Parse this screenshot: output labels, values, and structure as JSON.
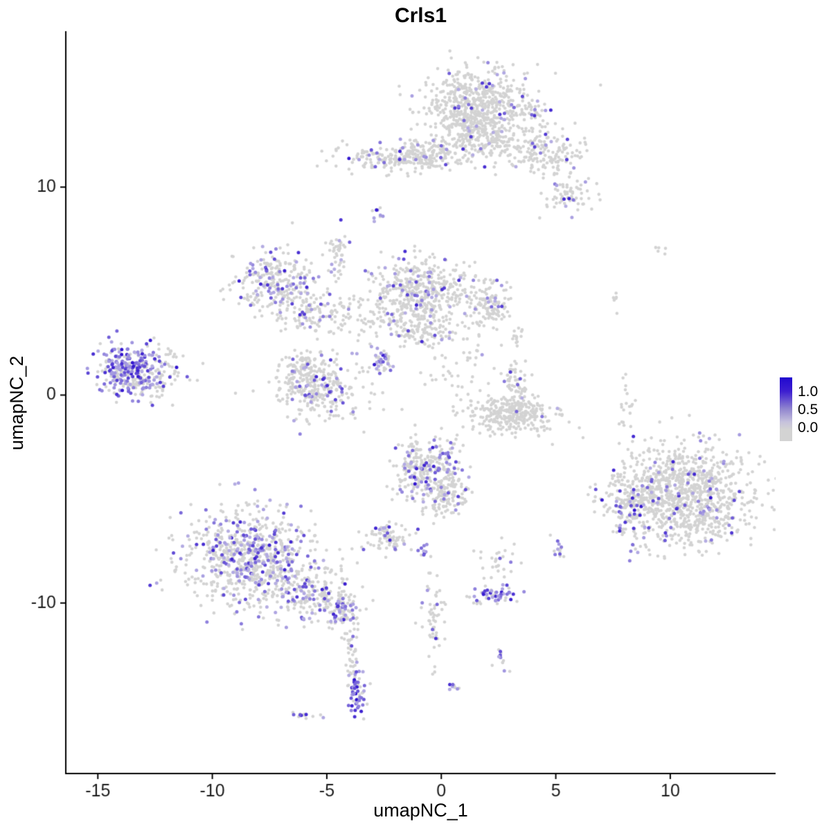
{
  "chart_data": {
    "type": "scatter",
    "title": "Crls1",
    "xlabel": "umapNC_1",
    "ylabel": "umapNC_2",
    "xlim": [
      -16.4,
      14.6
    ],
    "ylim": [
      -18.2,
      17.5
    ],
    "x_ticks": [
      -15,
      -10,
      -5,
      0,
      5,
      10
    ],
    "y_ticks": [
      10,
      0,
      -10
    ],
    "grid": false,
    "background": "#ffffff",
    "point_color_low": "#D3D3D3",
    "point_color_high": "#2000CC",
    "point_color_low_expr": "#CDC9E6",
    "legend": {
      "position": "right",
      "labels": [
        "1.0",
        "0.5",
        "0.0"
      ],
      "color_top": "#2008CF",
      "color_mid": "#9287CF",
      "color_bottom": "#D3D3D3"
    },
    "description": "UMAP feature plot of Crls1 expression across ~6800 single cells; grey points = no/low expression, purple-blue points = expression level (0 to 1+). Clusters are gaussian blobs in umap coordinates.",
    "clusters": [
      {
        "name": "top-main",
        "cx": 1.6,
        "cy": 13.9,
        "sx": 1.25,
        "sy": 0.95,
        "n": 650,
        "expr_frac": 0.06,
        "strength": 0.7
      },
      {
        "name": "top-main-neck",
        "cx": 1.7,
        "cy": 12.3,
        "sx": 0.8,
        "sy": 0.55,
        "n": 180,
        "expr_frac": 0.05,
        "strength": 0.7
      },
      {
        "name": "top-arm-right",
        "cx": 4.2,
        "cy": 11.6,
        "sx": 1.0,
        "sy": 0.55,
        "n": 170,
        "expr_frac": 0.05,
        "strength": 0.7
      },
      {
        "name": "top-right-small",
        "cx": 5.6,
        "cy": 9.6,
        "sx": 0.5,
        "sy": 0.45,
        "n": 70,
        "expr_frac": 0.18,
        "strength": 0.75
      },
      {
        "name": "top-band-left",
        "cx": -2.1,
        "cy": 11.4,
        "sx": 1.2,
        "sy": 0.35,
        "n": 190,
        "expr_frac": 0.1,
        "strength": 0.8
      },
      {
        "name": "top-band-mid",
        "cx": -0.5,
        "cy": 11.6,
        "sx": 0.6,
        "sy": 0.4,
        "n": 90,
        "expr_frac": 0.06,
        "strength": 0.7
      },
      {
        "name": "dots-upper-mid",
        "cx": -2.75,
        "cy": 8.8,
        "sx": 0.12,
        "sy": 0.28,
        "n": 10,
        "expr_frac": 0.5,
        "strength": 0.8
      },
      {
        "name": "left-ring",
        "cx": -7.2,
        "cy": 5.4,
        "sx": 0.9,
        "sy": 0.75,
        "n": 270,
        "expr_frac": 0.18,
        "strength": 0.75
      },
      {
        "name": "left-ring-arm",
        "cx": -5.6,
        "cy": 3.9,
        "sx": 0.8,
        "sy": 0.5,
        "n": 110,
        "expr_frac": 0.12,
        "strength": 0.7
      },
      {
        "name": "mid-upper-trail",
        "cx": -4.5,
        "cy": 6.3,
        "sx": 0.2,
        "sy": 0.7,
        "n": 30,
        "expr_frac": 0.1,
        "strength": 0.7
      },
      {
        "name": "small-upper-left",
        "cx": -4.6,
        "cy": 7.1,
        "sx": 0.25,
        "sy": 0.3,
        "n": 15,
        "expr_frac": 0.15,
        "strength": 0.7
      },
      {
        "name": "center-main",
        "cx": -0.9,
        "cy": 5.0,
        "sx": 1.0,
        "sy": 0.8,
        "n": 430,
        "expr_frac": 0.12,
        "strength": 0.75
      },
      {
        "name": "center-right-lobe",
        "cx": 2.0,
        "cy": 4.3,
        "sx": 0.55,
        "sy": 0.6,
        "n": 130,
        "expr_frac": 0.07,
        "strength": 0.7
      },
      {
        "name": "center-lower",
        "cx": -0.9,
        "cy": 3.2,
        "sx": 0.8,
        "sy": 0.4,
        "n": 110,
        "expr_frac": 0.05,
        "strength": 0.7
      },
      {
        "name": "center-sparse-left",
        "cx": -3.0,
        "cy": 3.8,
        "sx": 0.9,
        "sy": 0.7,
        "n": 70,
        "expr_frac": 0.07,
        "strength": 0.7
      },
      {
        "name": "far-left",
        "cx": -13.6,
        "cy": 1.2,
        "sx": 0.75,
        "sy": 0.65,
        "n": 300,
        "expr_frac": 0.55,
        "strength": 0.8
      },
      {
        "name": "far-left-fringe",
        "cx": -12.4,
        "cy": 0.9,
        "sx": 0.7,
        "sy": 0.6,
        "n": 70,
        "expr_frac": 0.1,
        "strength": 0.7
      },
      {
        "name": "far-left-dot",
        "cx": -11.7,
        "cy": 1.9,
        "sx": 0.15,
        "sy": 0.15,
        "n": 6,
        "expr_frac": 0.1,
        "strength": 0.7
      },
      {
        "name": "lower-left-ring",
        "cx": -5.3,
        "cy": 0.3,
        "sx": 1.0,
        "sy": 0.7,
        "n": 310,
        "expr_frac": 0.15,
        "strength": 0.75
      },
      {
        "name": "lower-left-ring-top",
        "cx": -5.9,
        "cy": 1.5,
        "sx": 0.55,
        "sy": 0.3,
        "n": 60,
        "expr_frac": 0.1,
        "strength": 0.7
      },
      {
        "name": "center-knot",
        "cx": -2.6,
        "cy": 1.7,
        "sx": 0.2,
        "sy": 0.3,
        "n": 40,
        "expr_frac": 0.45,
        "strength": 0.8
      },
      {
        "name": "center-bridge",
        "cx": 0.6,
        "cy": 1.4,
        "sx": 0.9,
        "sy": 0.9,
        "n": 45,
        "expr_frac": 0.05,
        "strength": 0.7
      },
      {
        "name": "smile",
        "cx": 3.1,
        "cy": -0.9,
        "sx": 1.0,
        "sy": 0.45,
        "n": 330,
        "expr_frac": 0.02,
        "strength": 0.7
      },
      {
        "name": "smile-upper-bits",
        "cx": 3.2,
        "cy": 0.8,
        "sx": 0.3,
        "sy": 0.45,
        "n": 40,
        "expr_frac": 0.08,
        "strength": 0.7
      },
      {
        "name": "mid-lower-blob",
        "cx": -0.6,
        "cy": -3.6,
        "sx": 0.75,
        "sy": 0.9,
        "n": 320,
        "expr_frac": 0.18,
        "strength": 0.8
      },
      {
        "name": "mid-lower-tail",
        "cx": 0.4,
        "cy": -4.9,
        "sx": 0.4,
        "sy": 0.5,
        "n": 80,
        "expr_frac": 0.08,
        "strength": 0.7
      },
      {
        "name": "small-mid-left",
        "cx": -2.4,
        "cy": -6.9,
        "sx": 0.5,
        "sy": 0.35,
        "n": 80,
        "expr_frac": 0.2,
        "strength": 0.75
      },
      {
        "name": "tiny-pair-mid",
        "cx": -0.75,
        "cy": -7.5,
        "sx": 0.15,
        "sy": 0.2,
        "n": 10,
        "expr_frac": 0.6,
        "strength": 0.8
      },
      {
        "name": "bottom-left-main",
        "cx": -8.3,
        "cy": -7.9,
        "sx": 1.45,
        "sy": 1.15,
        "n": 820,
        "expr_frac": 0.24,
        "strength": 0.75
      },
      {
        "name": "bottom-left-arm",
        "cx": -5.6,
        "cy": -9.6,
        "sx": 0.8,
        "sy": 0.55,
        "n": 150,
        "expr_frac": 0.2,
        "strength": 0.75
      },
      {
        "name": "bottom-left-arm-end",
        "cx": -4.4,
        "cy": -10.3,
        "sx": 0.4,
        "sy": 0.45,
        "n": 90,
        "expr_frac": 0.3,
        "strength": 0.75
      },
      {
        "name": "bottom-trail",
        "cx": -4.0,
        "cy": -12.1,
        "sx": 0.2,
        "sy": 0.8,
        "n": 40,
        "expr_frac": 0.15,
        "strength": 0.7
      },
      {
        "name": "bottom-knot",
        "cx": -3.7,
        "cy": -14.3,
        "sx": 0.22,
        "sy": 0.6,
        "n": 60,
        "expr_frac": 0.7,
        "strength": 0.85
      },
      {
        "name": "bottom-dash",
        "cx": -6.0,
        "cy": -15.4,
        "sx": 0.3,
        "sy": 0.1,
        "n": 15,
        "expr_frac": 0.4,
        "strength": 0.75
      },
      {
        "name": "center-bottom-trail",
        "cx": -0.4,
        "cy": -10.8,
        "sx": 0.25,
        "sy": 1.2,
        "n": 55,
        "expr_frac": 0.15,
        "strength": 0.8
      },
      {
        "name": "center-bottom-knot",
        "cx": 2.3,
        "cy": -9.6,
        "sx": 0.5,
        "sy": 0.2,
        "n": 55,
        "expr_frac": 0.6,
        "strength": 0.8
      },
      {
        "name": "center-bottom-sparse",
        "cx": 2.4,
        "cy": -8.2,
        "sx": 0.4,
        "sy": 0.5,
        "n": 30,
        "expr_frac": 0.1,
        "strength": 0.7
      },
      {
        "name": "tiny-dot-low1",
        "cx": 2.6,
        "cy": -12.7,
        "sx": 0.15,
        "sy": 0.3,
        "n": 12,
        "expr_frac": 0.5,
        "strength": 0.8
      },
      {
        "name": "tiny-dot-low2",
        "cx": 0.6,
        "cy": -14.1,
        "sx": 0.15,
        "sy": 0.15,
        "n": 8,
        "expr_frac": 0.6,
        "strength": 0.8
      },
      {
        "name": "right-pair",
        "cx": 5.1,
        "cy": -7.4,
        "sx": 0.15,
        "sy": 0.3,
        "n": 12,
        "expr_frac": 0.6,
        "strength": 0.8
      },
      {
        "name": "right-main",
        "cx": 10.6,
        "cy": -4.8,
        "sx": 1.5,
        "sy": 1.15,
        "n": 1050,
        "expr_frac": 0.07,
        "strength": 0.8
      },
      {
        "name": "right-main-edge",
        "cx": 8.3,
        "cy": -5.3,
        "sx": 0.5,
        "sy": 0.9,
        "n": 120,
        "expr_frac": 0.2,
        "strength": 0.8
      },
      {
        "name": "right-above-trail",
        "cx": 8.1,
        "cy": -0.6,
        "sx": 0.2,
        "sy": 0.9,
        "n": 20,
        "expr_frac": 0.1,
        "strength": 0.7
      },
      {
        "name": "right-dot-mid",
        "cx": 7.6,
        "cy": 4.6,
        "sx": 0.1,
        "sy": 0.3,
        "n": 6,
        "expr_frac": 0,
        "strength": 0.7
      },
      {
        "name": "right-dot-high",
        "cx": 9.5,
        "cy": 6.9,
        "sx": 0.15,
        "sy": 0.15,
        "n": 5,
        "expr_frac": 0,
        "strength": 0.7
      },
      {
        "name": "misc-mid-dots",
        "cx": 3.3,
        "cy": 2.8,
        "sx": 0.2,
        "sy": 0.3,
        "n": 12,
        "expr_frac": 0,
        "strength": 0.7
      },
      {
        "name": "misc-mid-dots2",
        "cx": 3.4,
        "cy": 0.2,
        "sx": 0.15,
        "sy": 0.5,
        "n": 10,
        "expr_frac": 0.1,
        "strength": 0.7
      }
    ]
  }
}
